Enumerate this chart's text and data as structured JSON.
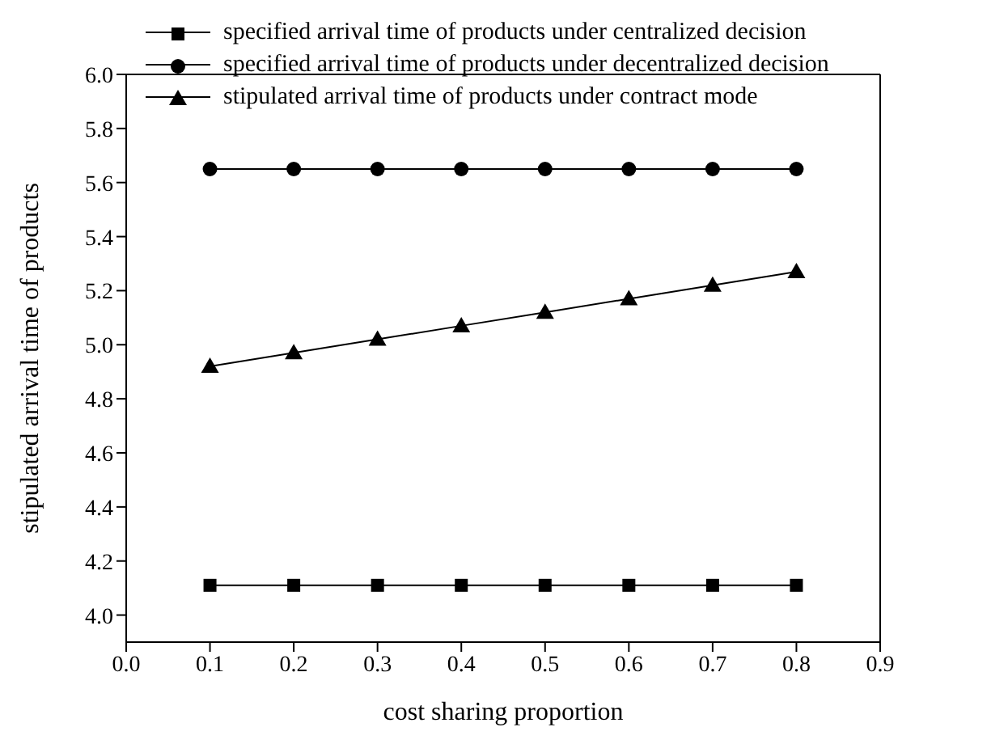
{
  "chart_data": {
    "type": "line",
    "xlabel": "cost sharing proportion",
    "ylabel": "stipulated arrival time of products",
    "x": [
      0.1,
      0.2,
      0.3,
      0.4,
      0.5,
      0.6,
      0.7,
      0.8
    ],
    "xlim": [
      0,
      0.9
    ],
    "xticks": [
      {
        "value": 0,
        "label": "0.0"
      },
      0.1,
      0.2,
      0.3,
      0.4,
      0.5,
      0.6,
      0.7,
      0.8,
      0.9
    ],
    "ylim": [
      3.9,
      6.0
    ],
    "yticks": [
      {
        "value": 4,
        "label": "4.0"
      },
      4.2,
      4.4,
      4.6,
      4.8,
      {
        "value": 5,
        "label": "5.0"
      },
      5.2,
      5.4,
      5.6,
      5.8,
      {
        "value": 6,
        "label": "6.0"
      }
    ],
    "grid": false,
    "legend": "top left",
    "line_style": "solid",
    "series": [
      {
        "name": "specified arrival time of products under centralized decision",
        "color": "#000000",
        "marker": "square",
        "values": [
          4.11,
          4.11,
          4.11,
          4.11,
          4.11,
          4.11,
          4.11,
          4.11
        ]
      },
      {
        "name": "specified arrival time of products under decentralized decision",
        "color": "#000000",
        "marker": "circle",
        "values": [
          5.65,
          5.65,
          5.65,
          5.65,
          5.65,
          5.65,
          5.65,
          5.65
        ]
      },
      {
        "name": "stipulated arrival time of products under contract mode",
        "color": "#000000",
        "marker": "triangle",
        "values": [
          4.92,
          4.97,
          5.02,
          5.07,
          5.12,
          5.17,
          5.22,
          5.27
        ]
      }
    ]
  }
}
